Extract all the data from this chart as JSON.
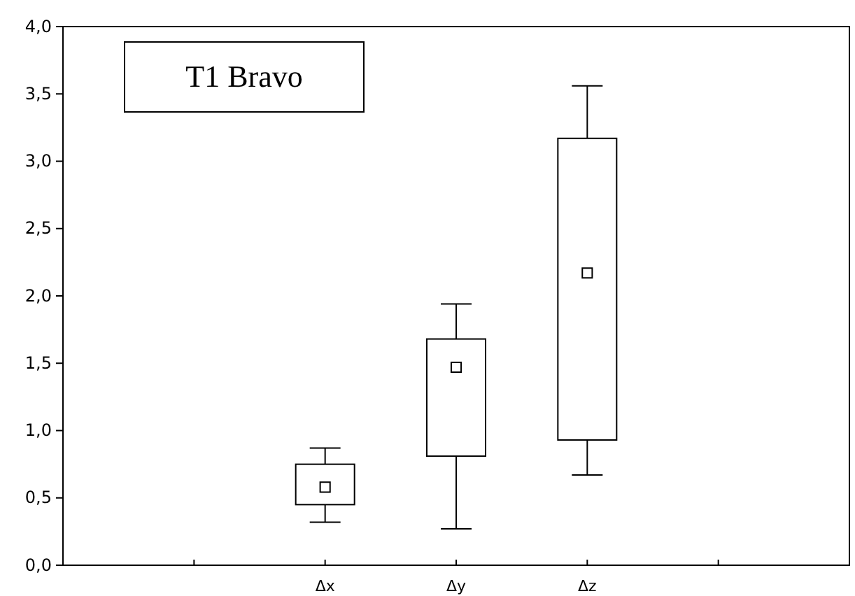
{
  "chart_data": {
    "type": "box",
    "title": "T1 Bravo",
    "categories": [
      null,
      null,
      "Δx",
      "Δy",
      "Δz",
      null,
      null
    ],
    "boxes": [
      null,
      null,
      {
        "low": 0.32,
        "q1": 0.45,
        "median": 0.58,
        "q3": 0.75,
        "high": 0.87
      },
      {
        "low": 0.27,
        "q1": 0.81,
        "median": 1.47,
        "q3": 1.68,
        "high": 1.94
      },
      {
        "low": 0.67,
        "q1": 0.93,
        "median": 2.17,
        "q3": 3.17,
        "high": 3.56
      },
      null,
      null
    ],
    "ylim": [
      0,
      4
    ],
    "yticks": [
      {
        "value": 0,
        "label": "0,0"
      },
      {
        "value": 0.5,
        "label": "0,5"
      },
      {
        "value": 1,
        "label": "1,0"
      },
      {
        "value": 1.5,
        "label": "1,5"
      },
      {
        "value": 2,
        "label": "2,0"
      },
      {
        "value": 2.5,
        "label": "2,5"
      },
      {
        "value": 3,
        "label": "3,0"
      },
      {
        "value": 3.5,
        "label": "3,5"
      },
      {
        "value": 4,
        "label": "4,0"
      }
    ],
    "marker": "square"
  }
}
